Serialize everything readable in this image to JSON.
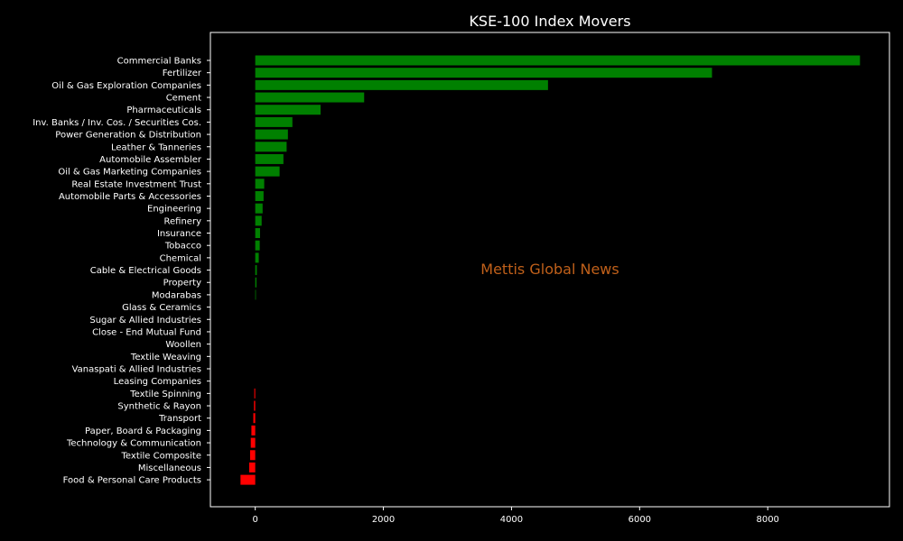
{
  "chart_data": {
    "type": "bar",
    "orientation": "horizontal",
    "title": "KSE-100 Index Movers",
    "watermark": "Mettis Global News",
    "xlabel": "",
    "ylabel": "",
    "xlim": [
      -700,
      9900
    ],
    "xticks": [
      0,
      2000,
      4000,
      6000,
      8000
    ],
    "xtick_labels": [
      "0",
      "2000",
      "4000",
      "6000",
      "8000"
    ],
    "grid": false,
    "legend": "none",
    "colors": {
      "background": "#000000",
      "axes": "#ffffff",
      "positive": "#008000",
      "negative": "#ff0000",
      "watermark": "#c0601a",
      "text": "#ffffff"
    },
    "categories": [
      "Commercial Banks",
      "Fertilizer",
      "Oil & Gas Exploration Companies",
      "Cement",
      "Pharmaceuticals",
      "Inv. Banks / Inv. Cos. / Securities Cos.",
      "Power Generation & Distribution",
      "Leather & Tanneries",
      "Automobile Assembler",
      "Oil & Gas Marketing Companies",
      "Real Estate Investment Trust",
      "Automobile Parts & Accessories",
      "Engineering",
      "Refinery",
      "Insurance",
      "Tobacco",
      "Chemical",
      "Cable & Electrical Goods",
      "Property",
      "Modarabas",
      "Glass & Ceramics",
      "Sugar & Allied Industries",
      "Close - End Mutual Fund",
      "Woollen",
      "Textile Weaving",
      "Vanaspati & Allied Industries",
      "Leasing Companies",
      "Textile Spinning",
      "Synthetic & Rayon",
      "Transport",
      "Paper, Board & Packaging",
      "Technology & Communication",
      "Textile Composite",
      "Miscellaneous",
      "Food & Personal Care Products"
    ],
    "values": [
      9440,
      7130,
      4570,
      1700,
      1020,
      580,
      510,
      490,
      440,
      380,
      140,
      130,
      115,
      100,
      75,
      70,
      55,
      25,
      20,
      10,
      0,
      0,
      0,
      0,
      0,
      0,
      0,
      -15,
      -20,
      -30,
      -60,
      -70,
      -80,
      -95,
      -230
    ]
  }
}
